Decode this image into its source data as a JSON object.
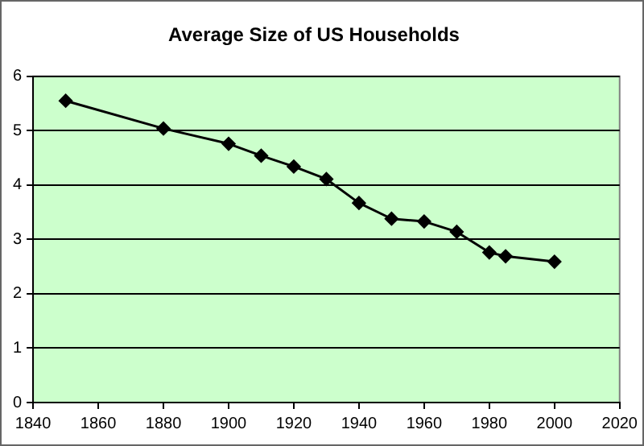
{
  "chart_data": {
    "type": "line",
    "title": "Average Size of US Households",
    "x": [
      1850,
      1880,
      1900,
      1910,
      1920,
      1930,
      1940,
      1950,
      1960,
      1970,
      1980,
      1985,
      2000
    ],
    "series": [
      {
        "color": "#000000",
        "values": [
          5.55,
          5.04,
          4.76,
          4.54,
          4.34,
          4.11,
          3.67,
          3.38,
          3.33,
          3.14,
          2.76,
          2.69,
          2.59
        ]
      }
    ],
    "xlim": [
      1840,
      2020
    ],
    "xticks": [
      1840,
      1860,
      1880,
      1900,
      1920,
      1940,
      1960,
      1980,
      2000,
      2020
    ],
    "ylim": [
      0,
      6
    ],
    "yticks": [
      0,
      1,
      2,
      3,
      4,
      5,
      6
    ],
    "grid": "y",
    "legend": false,
    "marker": "diamond",
    "line_style": "solid"
  }
}
